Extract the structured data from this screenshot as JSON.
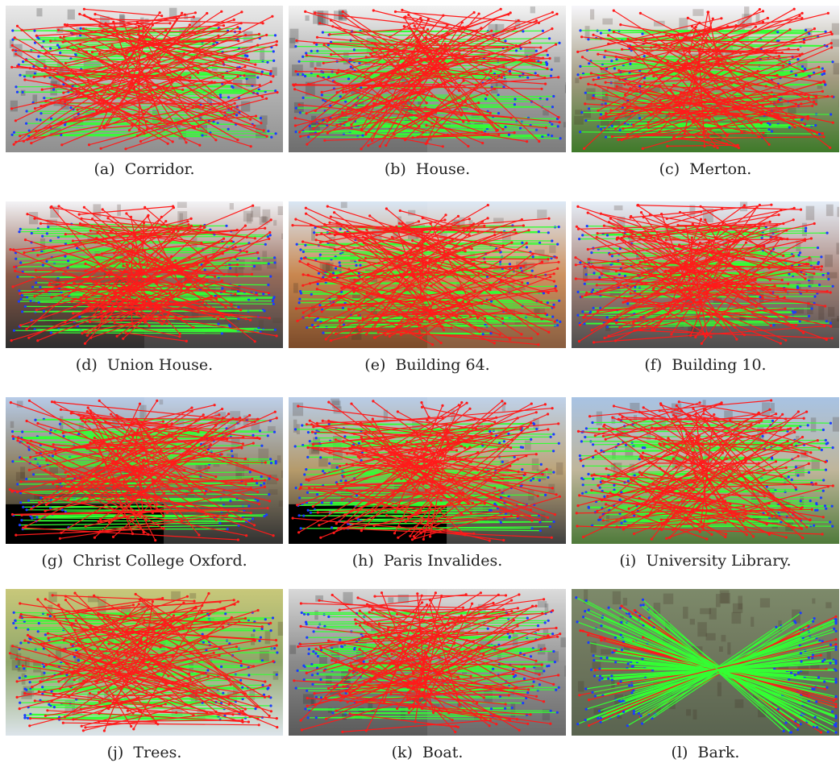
{
  "figure": {
    "panels": [
      {
        "label": "(a)",
        "name": "Corridor.",
        "scene": "corridor",
        "match_pattern": "random"
      },
      {
        "label": "(b)",
        "name": "House.",
        "scene": "house",
        "match_pattern": "random"
      },
      {
        "label": "(c)",
        "name": "Merton.",
        "scene": "merton",
        "match_pattern": "random"
      },
      {
        "label": "(d)",
        "name": "Union House.",
        "scene": "union",
        "match_pattern": "random"
      },
      {
        "label": "(e)",
        "name": "Building 64.",
        "scene": "b64",
        "match_pattern": "random"
      },
      {
        "label": "(f)",
        "name": "Building 10.",
        "scene": "b10",
        "match_pattern": "random"
      },
      {
        "label": "(g)",
        "name": "Christ College Oxford.",
        "scene": "christ",
        "match_pattern": "random"
      },
      {
        "label": "(h)",
        "name": "Paris Invalides.",
        "scene": "paris",
        "match_pattern": "random"
      },
      {
        "label": "(i)",
        "name": "University Library.",
        "scene": "library",
        "match_pattern": "random"
      },
      {
        "label": "(j)",
        "name": "Trees.",
        "scene": "trees",
        "match_pattern": "random"
      },
      {
        "label": "(k)",
        "name": "Boat.",
        "scene": "boat",
        "match_pattern": "random"
      },
      {
        "label": "(l)",
        "name": "Bark.",
        "scene": "bark",
        "match_pattern": "cross"
      }
    ],
    "colors": {
      "inlier_line": "#33ff33",
      "outlier_line": "#ff1a1a",
      "keypoint": "#1a3cff",
      "caption_text": "#222222"
    }
  }
}
